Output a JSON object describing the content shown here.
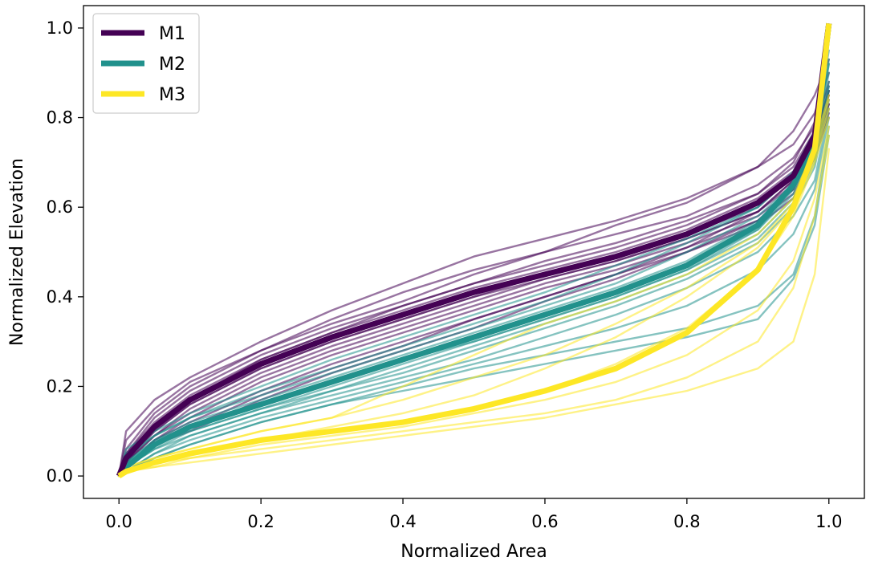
{
  "chart_data": {
    "type": "line",
    "title": "",
    "xlabel": "Normalized Area",
    "ylabel": "Normalized Elevation",
    "xlim": [
      -0.05,
      1.05
    ],
    "ylim": [
      -0.05,
      1.05
    ],
    "xticks": [
      0.0,
      0.2,
      0.4,
      0.6,
      0.8,
      1.0
    ],
    "yticks": [
      0.0,
      0.2,
      0.4,
      0.6,
      0.8,
      1.0
    ],
    "xtick_labels": [
      "0.0",
      "0.2",
      "0.4",
      "0.6",
      "0.8",
      "1.0"
    ],
    "ytick_labels": [
      "0.0",
      "0.2",
      "0.4",
      "0.6",
      "0.8",
      "1.0"
    ],
    "grid": false,
    "legend": {
      "placement": "top-left",
      "entries": [
        {
          "label": "M1",
          "color": "#440154"
        },
        {
          "label": "M2",
          "color": "#21918c"
        },
        {
          "label": "M3",
          "color": "#fde725"
        }
      ]
    },
    "x": [
      0.0,
      0.01,
      0.05,
      0.1,
      0.2,
      0.3,
      0.4,
      0.5,
      0.6,
      0.7,
      0.8,
      0.9,
      0.95,
      0.98,
      1.0
    ],
    "series": [
      {
        "name": "M1",
        "color": "#440154",
        "role": "mean",
        "values": [
          0.0,
          0.04,
          0.11,
          0.17,
          0.25,
          0.31,
          0.36,
          0.41,
          0.45,
          0.49,
          0.54,
          0.61,
          0.67,
          0.76,
          1.01
        ]
      },
      {
        "name": "M2",
        "color": "#21918c",
        "role": "mean",
        "values": [
          0.0,
          0.02,
          0.07,
          0.11,
          0.16,
          0.21,
          0.26,
          0.31,
          0.36,
          0.41,
          0.47,
          0.56,
          0.65,
          0.74,
          1.01
        ]
      },
      {
        "name": "M3",
        "color": "#fde725",
        "role": "mean",
        "values": [
          0.0,
          0.01,
          0.03,
          0.05,
          0.08,
          0.1,
          0.12,
          0.15,
          0.19,
          0.24,
          0.32,
          0.46,
          0.6,
          0.73,
          1.01
        ]
      },
      {
        "name": "M1",
        "color": "#440154",
        "role": "member",
        "values": [
          0.0,
          0.1,
          0.17,
          0.22,
          0.3,
          0.37,
          0.43,
          0.49,
          0.53,
          0.57,
          0.62,
          0.69,
          0.74,
          0.81,
          0.9
        ]
      },
      {
        "name": "M1",
        "color": "#440154",
        "role": "member",
        "values": [
          0.0,
          0.08,
          0.15,
          0.21,
          0.28,
          0.34,
          0.39,
          0.45,
          0.5,
          0.56,
          0.61,
          0.69,
          0.77,
          0.85,
          0.93
        ]
      },
      {
        "name": "M1",
        "color": "#440154",
        "role": "member",
        "values": [
          0.0,
          0.06,
          0.14,
          0.2,
          0.28,
          0.35,
          0.41,
          0.46,
          0.5,
          0.54,
          0.58,
          0.65,
          0.71,
          0.78,
          0.88
        ]
      },
      {
        "name": "M1",
        "color": "#440154",
        "role": "member",
        "values": [
          0.0,
          0.05,
          0.13,
          0.19,
          0.27,
          0.33,
          0.38,
          0.43,
          0.48,
          0.52,
          0.57,
          0.63,
          0.69,
          0.77,
          0.86
        ]
      },
      {
        "name": "M1",
        "color": "#440154",
        "role": "member",
        "values": [
          0.0,
          0.05,
          0.12,
          0.18,
          0.26,
          0.32,
          0.38,
          0.43,
          0.47,
          0.51,
          0.56,
          0.63,
          0.7,
          0.79,
          0.87
        ]
      },
      {
        "name": "M1",
        "color": "#440154",
        "role": "member",
        "values": [
          0.0,
          0.04,
          0.11,
          0.17,
          0.26,
          0.32,
          0.37,
          0.42,
          0.46,
          0.5,
          0.55,
          0.62,
          0.68,
          0.77,
          0.85
        ]
      },
      {
        "name": "M1",
        "color": "#440154",
        "role": "member",
        "values": [
          0.0,
          0.04,
          0.11,
          0.17,
          0.25,
          0.31,
          0.36,
          0.41,
          0.45,
          0.49,
          0.54,
          0.61,
          0.67,
          0.75,
          0.84
        ]
      },
      {
        "name": "M1",
        "color": "#440154",
        "role": "member",
        "values": [
          0.0,
          0.04,
          0.1,
          0.16,
          0.24,
          0.3,
          0.35,
          0.4,
          0.45,
          0.49,
          0.54,
          0.6,
          0.67,
          0.76,
          0.86
        ]
      },
      {
        "name": "M1",
        "color": "#440154",
        "role": "member",
        "values": [
          0.0,
          0.03,
          0.1,
          0.16,
          0.24,
          0.3,
          0.35,
          0.4,
          0.44,
          0.48,
          0.53,
          0.59,
          0.65,
          0.74,
          0.83
        ]
      },
      {
        "name": "M1",
        "color": "#440154",
        "role": "member",
        "values": [
          0.0,
          0.03,
          0.09,
          0.15,
          0.23,
          0.29,
          0.34,
          0.39,
          0.44,
          0.48,
          0.53,
          0.59,
          0.66,
          0.75,
          0.85
        ]
      },
      {
        "name": "M1",
        "color": "#440154",
        "role": "member",
        "values": [
          0.0,
          0.03,
          0.09,
          0.14,
          0.22,
          0.28,
          0.33,
          0.38,
          0.43,
          0.47,
          0.52,
          0.58,
          0.64,
          0.73,
          0.82
        ]
      },
      {
        "name": "M1",
        "color": "#440154",
        "role": "member",
        "values": [
          0.0,
          0.02,
          0.08,
          0.13,
          0.21,
          0.27,
          0.32,
          0.37,
          0.42,
          0.46,
          0.51,
          0.57,
          0.63,
          0.72,
          0.81
        ]
      },
      {
        "name": "M1",
        "color": "#440154",
        "role": "member",
        "values": [
          0.0,
          0.02,
          0.08,
          0.12,
          0.19,
          0.25,
          0.3,
          0.35,
          0.4,
          0.45,
          0.5,
          0.57,
          0.64,
          0.74,
          0.83
        ]
      },
      {
        "name": "M1",
        "color": "#440154",
        "role": "member",
        "values": [
          0.0,
          0.02,
          0.07,
          0.11,
          0.18,
          0.24,
          0.29,
          0.35,
          0.4,
          0.45,
          0.51,
          0.59,
          0.66,
          0.75,
          0.86
        ]
      },
      {
        "name": "M1",
        "color": "#440154",
        "role": "member",
        "values": [
          0.0,
          0.02,
          0.07,
          0.1,
          0.17,
          0.23,
          0.28,
          0.33,
          0.39,
          0.44,
          0.5,
          0.56,
          0.62,
          0.71,
          0.8
        ]
      },
      {
        "name": "M2",
        "color": "#21918c",
        "role": "member",
        "values": [
          0.0,
          0.06,
          0.1,
          0.14,
          0.2,
          0.26,
          0.31,
          0.36,
          0.41,
          0.47,
          0.53,
          0.6,
          0.67,
          0.76,
          0.92
        ]
      },
      {
        "name": "M2",
        "color": "#21918c",
        "role": "member",
        "values": [
          0.0,
          0.05,
          0.09,
          0.13,
          0.19,
          0.24,
          0.29,
          0.34,
          0.39,
          0.45,
          0.52,
          0.6,
          0.68,
          0.77,
          0.95
        ]
      },
      {
        "name": "M2",
        "color": "#21918c",
        "role": "member",
        "values": [
          0.0,
          0.04,
          0.09,
          0.13,
          0.18,
          0.23,
          0.28,
          0.33,
          0.38,
          0.43,
          0.5,
          0.58,
          0.65,
          0.74,
          0.93
        ]
      },
      {
        "name": "M2",
        "color": "#21918c",
        "role": "member",
        "values": [
          0.0,
          0.03,
          0.08,
          0.12,
          0.17,
          0.22,
          0.27,
          0.32,
          0.37,
          0.42,
          0.48,
          0.57,
          0.65,
          0.74,
          0.9
        ]
      },
      {
        "name": "M2",
        "color": "#21918c",
        "role": "member",
        "values": [
          0.0,
          0.03,
          0.08,
          0.11,
          0.16,
          0.21,
          0.26,
          0.31,
          0.36,
          0.41,
          0.47,
          0.55,
          0.64,
          0.73,
          0.92
        ]
      },
      {
        "name": "M2",
        "color": "#21918c",
        "role": "member",
        "values": [
          0.0,
          0.02,
          0.07,
          0.11,
          0.16,
          0.21,
          0.26,
          0.3,
          0.35,
          0.4,
          0.46,
          0.55,
          0.63,
          0.73,
          0.88
        ]
      },
      {
        "name": "M2",
        "color": "#21918c",
        "role": "member",
        "values": [
          0.0,
          0.02,
          0.07,
          0.1,
          0.15,
          0.2,
          0.25,
          0.3,
          0.35,
          0.4,
          0.46,
          0.54,
          0.62,
          0.71,
          0.87
        ]
      },
      {
        "name": "M2",
        "color": "#21918c",
        "role": "member",
        "values": [
          0.0,
          0.02,
          0.06,
          0.1,
          0.15,
          0.19,
          0.24,
          0.29,
          0.34,
          0.39,
          0.45,
          0.53,
          0.61,
          0.7,
          0.86
        ]
      },
      {
        "name": "M2",
        "color": "#21918c",
        "role": "member",
        "values": [
          0.0,
          0.02,
          0.06,
          0.09,
          0.14,
          0.19,
          0.23,
          0.28,
          0.33,
          0.38,
          0.44,
          0.52,
          0.6,
          0.69,
          0.84
        ]
      },
      {
        "name": "M2",
        "color": "#21918c",
        "role": "member",
        "values": [
          0.0,
          0.01,
          0.05,
          0.09,
          0.14,
          0.18,
          0.22,
          0.26,
          0.31,
          0.36,
          0.42,
          0.5,
          0.58,
          0.66,
          0.82
        ]
      },
      {
        "name": "M2",
        "color": "#21918c",
        "role": "member",
        "values": [
          0.0,
          0.01,
          0.05,
          0.08,
          0.13,
          0.17,
          0.21,
          0.25,
          0.29,
          0.33,
          0.38,
          0.46,
          0.54,
          0.64,
          0.8
        ]
      },
      {
        "name": "M2",
        "color": "#21918c",
        "role": "member",
        "values": [
          0.0,
          0.01,
          0.04,
          0.07,
          0.12,
          0.16,
          0.2,
          0.24,
          0.27,
          0.3,
          0.33,
          0.38,
          0.45,
          0.58,
          0.78
        ]
      },
      {
        "name": "M2",
        "color": "#21918c",
        "role": "member",
        "values": [
          0.0,
          0.01,
          0.04,
          0.07,
          0.12,
          0.16,
          0.19,
          0.22,
          0.25,
          0.28,
          0.31,
          0.35,
          0.44,
          0.56,
          0.76
        ]
      },
      {
        "name": "M3",
        "color": "#fde725",
        "role": "member",
        "values": [
          0.0,
          0.02,
          0.04,
          0.06,
          0.1,
          0.13,
          0.2,
          0.27,
          0.34,
          0.39,
          0.45,
          0.54,
          0.62,
          0.74,
          0.85
        ]
      },
      {
        "name": "M3",
        "color": "#fde725",
        "role": "member",
        "values": [
          0.0,
          0.02,
          0.04,
          0.06,
          0.1,
          0.13,
          0.17,
          0.22,
          0.27,
          0.34,
          0.42,
          0.52,
          0.61,
          0.72,
          0.84
        ]
      },
      {
        "name": "M3",
        "color": "#fde725",
        "role": "member",
        "values": [
          0.0,
          0.01,
          0.03,
          0.05,
          0.08,
          0.11,
          0.14,
          0.18,
          0.24,
          0.31,
          0.4,
          0.51,
          0.6,
          0.71,
          0.82
        ]
      },
      {
        "name": "M3",
        "color": "#fde725",
        "role": "member",
        "values": [
          0.0,
          0.01,
          0.03,
          0.05,
          0.08,
          0.1,
          0.12,
          0.15,
          0.19,
          0.25,
          0.33,
          0.46,
          0.58,
          0.7,
          0.8
        ]
      },
      {
        "name": "M3",
        "color": "#fde725",
        "role": "member",
        "values": [
          0.0,
          0.01,
          0.03,
          0.04,
          0.07,
          0.09,
          0.11,
          0.14,
          0.17,
          0.21,
          0.27,
          0.37,
          0.48,
          0.62,
          0.78
        ]
      },
      {
        "name": "M3",
        "color": "#fde725",
        "role": "member",
        "values": [
          0.0,
          0.01,
          0.02,
          0.04,
          0.06,
          0.08,
          0.1,
          0.12,
          0.14,
          0.17,
          0.22,
          0.3,
          0.42,
          0.58,
          0.76
        ]
      },
      {
        "name": "M3",
        "color": "#fde725",
        "role": "member",
        "values": [
          0.0,
          0.01,
          0.02,
          0.03,
          0.05,
          0.07,
          0.09,
          0.11,
          0.13,
          0.16,
          0.19,
          0.24,
          0.3,
          0.45,
          0.73
        ]
      }
    ]
  }
}
